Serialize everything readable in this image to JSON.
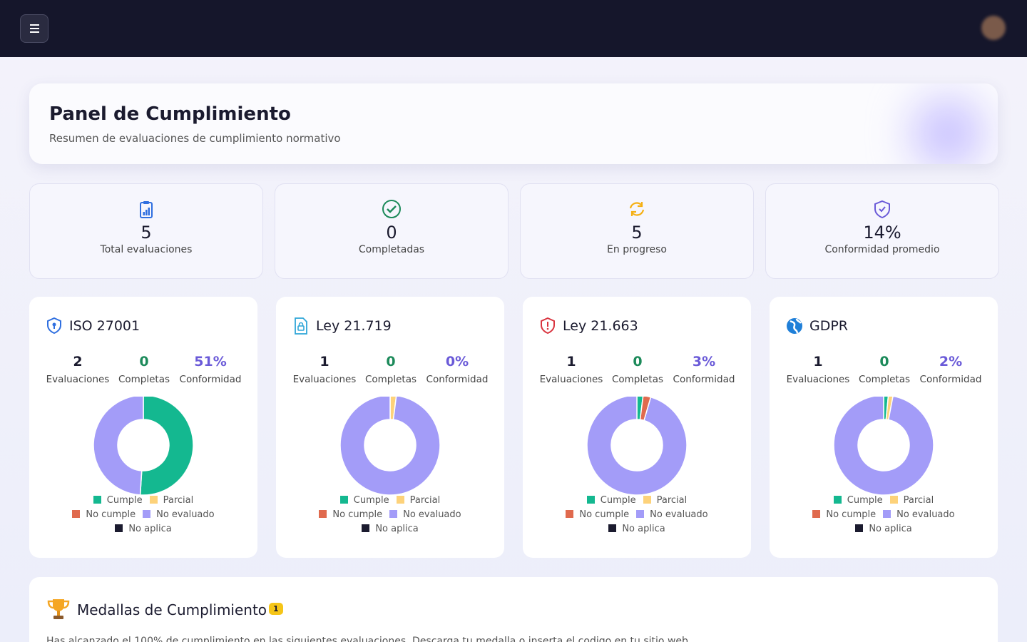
{
  "header": {
    "title": "Panel de Cumplimiento",
    "subtitle": "Resumen de evaluaciones de cumplimiento normativo"
  },
  "stats": [
    {
      "value": "5",
      "label": "Total evaluaciones"
    },
    {
      "value": "0",
      "label": "Completadas"
    },
    {
      "value": "5",
      "label": "En progreso"
    },
    {
      "value": "14%",
      "label": "Conformidad promedio"
    }
  ],
  "frameworks": [
    {
      "name": "ISO 27001",
      "stats": [
        {
          "value": "2",
          "label": "Evaluaciones"
        },
        {
          "value": "0",
          "label": "Completas"
        },
        {
          "value": "51%",
          "label": "Conformidad"
        }
      ]
    },
    {
      "name": "Ley 21.719",
      "stats": [
        {
          "value": "1",
          "label": "Evaluaciones"
        },
        {
          "value": "0",
          "label": "Completas"
        },
        {
          "value": "0%",
          "label": "Conformidad"
        }
      ]
    },
    {
      "name": "Ley 21.663",
      "stats": [
        {
          "value": "1",
          "label": "Evaluaciones"
        },
        {
          "value": "0",
          "label": "Completas"
        },
        {
          "value": "3%",
          "label": "Conformidad"
        }
      ]
    },
    {
      "name": "GDPR",
      "stats": [
        {
          "value": "1",
          "label": "Evaluaciones"
        },
        {
          "value": "0",
          "label": "Completas"
        },
        {
          "value": "2%",
          "label": "Conformidad"
        }
      ]
    }
  ],
  "chart_data": [
    {
      "type": "pie",
      "categories": [
        "Cumple",
        "Parcial",
        "No cumple",
        "No evaluado",
        "No aplica"
      ],
      "colors": [
        "#14b890",
        "#fdd27a",
        "#e06a4e",
        "#a39cf8",
        "#1b1b2f"
      ],
      "values": [
        51,
        0,
        0,
        49,
        0
      ]
    },
    {
      "type": "pie",
      "categories": [
        "Cumple",
        "Parcial",
        "No cumple",
        "No evaluado",
        "No aplica"
      ],
      "colors": [
        "#14b890",
        "#fdd27a",
        "#e06a4e",
        "#a39cf8",
        "#1b1b2f"
      ],
      "values": [
        0,
        2,
        0,
        98,
        0
      ]
    },
    {
      "type": "pie",
      "categories": [
        "Cumple",
        "Parcial",
        "No cumple",
        "No evaluado",
        "No aplica"
      ],
      "colors": [
        "#14b890",
        "#fdd27a",
        "#e06a4e",
        "#a39cf8",
        "#1b1b2f"
      ],
      "values": [
        2,
        0,
        2.5,
        95.5,
        0
      ]
    },
    {
      "type": "pie",
      "categories": [
        "Cumple",
        "Parcial",
        "No cumple",
        "No evaluado",
        "No aplica"
      ],
      "colors": [
        "#14b890",
        "#fdd27a",
        "#e06a4e",
        "#a39cf8",
        "#1b1b2f"
      ],
      "values": [
        1.5,
        1.5,
        0,
        97,
        0
      ]
    }
  ],
  "medals": {
    "title": "Medallas de Cumplimiento",
    "count": "1",
    "text": "Has alcanzado el 100% de cumplimiento en las siguientes evaluaciones. Descarga tu medalla o inserta el codigo en tu sitio web."
  }
}
